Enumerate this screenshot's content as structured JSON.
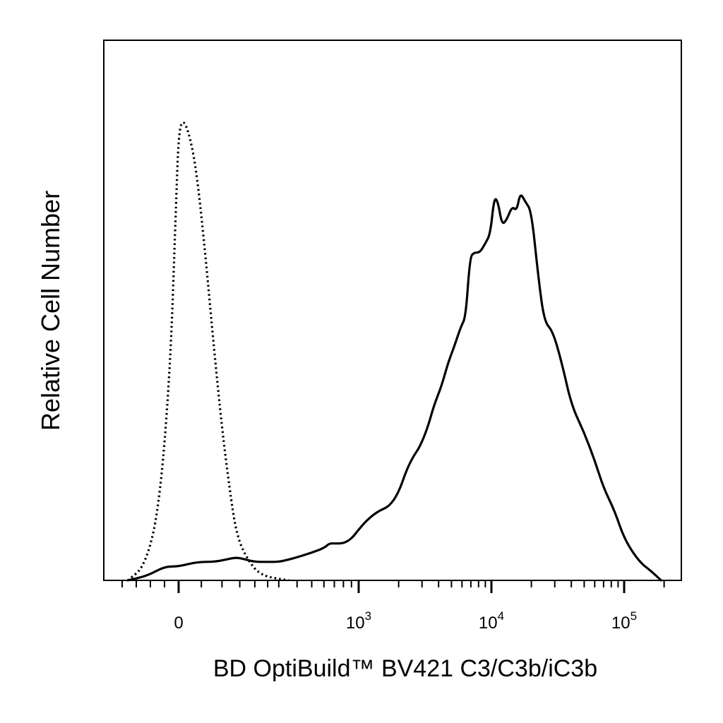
{
  "chart_data": {
    "type": "line",
    "title": "",
    "xlabel": "BD OptiBuild™ BV421 C3/C3b/iC3b",
    "ylabel": "Relative Cell Number",
    "x_scale": "biexponential",
    "xlim": [
      -300,
      200000
    ],
    "ylim": [
      0,
      100
    ],
    "grid": false,
    "legend": "none",
    "x_ticks": [
      {
        "value": 0,
        "base": "0",
        "exp": ""
      },
      {
        "value": 1000,
        "base": "10",
        "exp": "3"
      },
      {
        "value": 10000,
        "base": "10",
        "exp": "4"
      },
      {
        "value": 100000,
        "base": "10",
        "exp": "5"
      }
    ],
    "series": [
      {
        "style": "dotted",
        "color": "#000000",
        "x": [
          -180,
          -120,
          -70,
          -30,
          -10,
          0,
          10,
          25,
          40,
          60,
          80,
          100,
          120,
          140,
          170,
          220,
          350
        ],
        "y": [
          0,
          3,
          15,
          45,
          80,
          97,
          100,
          96,
          88,
          70,
          50,
          33,
          20,
          10,
          5,
          1,
          0
        ]
      },
      {
        "style": "solid",
        "color": "#000000",
        "x": [
          -180,
          -110,
          -50,
          0,
          40,
          80,
          110,
          140,
          170,
          200,
          250,
          300,
          350,
          400,
          500,
          600,
          650,
          700,
          800,
          900,
          1000,
          1150,
          1400,
          1700,
          2000,
          2300,
          2600,
          2900,
          3300,
          3700,
          4200,
          4700,
          5300,
          5900,
          6400,
          6900,
          7400,
          8200,
          9000,
          9800,
          10500,
          11200,
          12000,
          13000,
          14300,
          15500,
          16500,
          18000,
          20000,
          22500,
          25000,
          29000,
          34000,
          40000,
          50000,
          60000,
          70000,
          85000,
          100000,
          130000,
          160000,
          190000
        ],
        "y": [
          0,
          1,
          3,
          3,
          4,
          4,
          4.5,
          5,
          4.5,
          4,
          4,
          4,
          4.5,
          5,
          6,
          7,
          8,
          8,
          8,
          9,
          11,
          13,
          15,
          16,
          19,
          24,
          27,
          29,
          33,
          38,
          42,
          47,
          51,
          55,
          57,
          70,
          71,
          71,
          73,
          75,
          83,
          82,
          77,
          78,
          81,
          80,
          84,
          82,
          80,
          66,
          56,
          54,
          47,
          38,
          32,
          26,
          20,
          15,
          9,
          4,
          2,
          0
        ]
      }
    ]
  }
}
